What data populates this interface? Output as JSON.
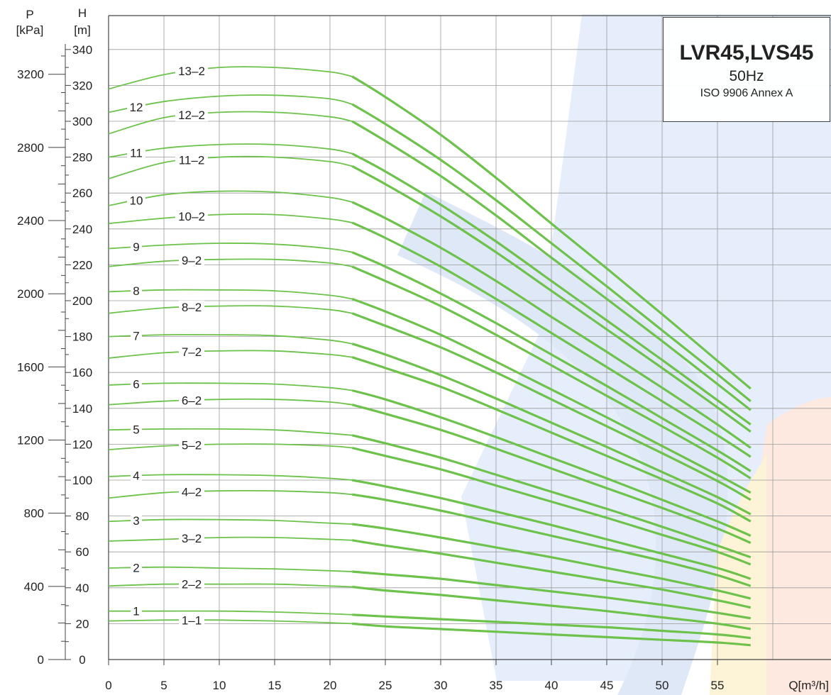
{
  "chart_data": {
    "type": "line",
    "title": "LVR45,LVS45",
    "subtitle": "50Hz",
    "standard": "ISO 9906 Annex A",
    "xlabel": "Q[m³/h]",
    "ylabel": "H",
    "ylabel_unit": "[m]",
    "y2label": "P",
    "y2label_unit": "[kPa]",
    "xlim": [
      0,
      65
    ],
    "ylim": [
      0,
      350
    ],
    "x_ticks": [
      0,
      5,
      10,
      15,
      20,
      25,
      30,
      35,
      40,
      45,
      50,
      55
    ],
    "y_ticks": [
      0,
      20,
      40,
      60,
      80,
      100,
      120,
      140,
      160,
      180,
      200,
      220,
      240,
      260,
      280,
      300,
      320,
      340
    ],
    "p_ticks": [
      0,
      400,
      800,
      1200,
      1600,
      2000,
      2400,
      2800,
      3200
    ],
    "grid": true,
    "line_color": "#6cc24a",
    "x": [
      0,
      5,
      10,
      15,
      20,
      22,
      25,
      30,
      35,
      40,
      45,
      50,
      55,
      58
    ],
    "series": [
      {
        "name": "1-1",
        "label_x": 7.5,
        "values": [
          21.5,
          22,
          22,
          21.5,
          20.5,
          20,
          18.5,
          17,
          15.5,
          14,
          12.5,
          11,
          9.5,
          8
        ]
      },
      {
        "name": "1",
        "label_x": 2.5,
        "values": [
          27,
          27,
          27,
          26.5,
          25.5,
          25,
          24,
          22.5,
          21,
          19.5,
          18,
          16,
          14,
          12
        ]
      },
      {
        "name": "2-2",
        "label_x": 7.5,
        "values": [
          41,
          42,
          42,
          42,
          41,
          40.5,
          38.5,
          36,
          33,
          30,
          27,
          23.5,
          20,
          17
        ]
      },
      {
        "name": "2",
        "label_x": 2.5,
        "values": [
          51,
          51.5,
          51,
          50.5,
          49.5,
          49,
          47.5,
          45,
          41.5,
          38,
          34.5,
          30.5,
          26,
          23
        ]
      },
      {
        "name": "3-2",
        "label_x": 7.5,
        "values": [
          66,
          67,
          68,
          68,
          67,
          66.5,
          63.5,
          59,
          54,
          49,
          44,
          39,
          33,
          29
        ]
      },
      {
        "name": "3",
        "label_x": 2.5,
        "values": [
          77,
          78,
          78,
          77.5,
          76,
          75.5,
          73,
          68,
          62.5,
          57,
          51,
          45,
          38.5,
          34
        ]
      },
      {
        "name": "4-2",
        "label_x": 7.5,
        "values": [
          90,
          93,
          94,
          94,
          93,
          92,
          89,
          83,
          76,
          69,
          62,
          55,
          47,
          41
        ]
      },
      {
        "name": "4",
        "label_x": 2.5,
        "values": [
          102,
          103,
          103,
          102.5,
          101,
          100,
          96.5,
          90,
          82.5,
          75,
          67,
          59,
          51,
          45
        ]
      },
      {
        "name": "5-2",
        "label_x": 7.5,
        "values": [
          117,
          119,
          120,
          120,
          119,
          118,
          113.5,
          106,
          97,
          88,
          79,
          69.5,
          60,
          53
        ]
      },
      {
        "name": "5",
        "label_x": 2.5,
        "values": [
          128,
          128.5,
          128.5,
          128,
          126,
          125,
          120.5,
          112.5,
          103,
          93.5,
          84,
          74,
          63.5,
          57
        ]
      },
      {
        "name": "6-2",
        "label_x": 7.5,
        "values": [
          142,
          144,
          145,
          145,
          143.5,
          142,
          137,
          128,
          117.5,
          106.5,
          95.5,
          84.5,
          73,
          65
        ]
      },
      {
        "name": "6",
        "label_x": 2.5,
        "values": [
          153,
          154,
          154,
          153.5,
          151.5,
          150,
          145,
          135,
          124,
          112.5,
          101,
          89,
          77,
          69
        ]
      },
      {
        "name": "7-2",
        "label_x": 7.5,
        "values": [
          168,
          171,
          172,
          172,
          170,
          168.5,
          162.5,
          152,
          139.5,
          126.5,
          113.5,
          100.5,
          87,
          77
        ]
      },
      {
        "name": "7",
        "label_x": 2.5,
        "values": [
          180,
          181,
          181,
          180.5,
          178,
          176,
          170,
          158.5,
          145.5,
          132,
          118.5,
          104.5,
          90.5,
          81
        ]
      },
      {
        "name": "8-2",
        "label_x": 7.5,
        "values": [
          193,
          196,
          197,
          197,
          195,
          193,
          186,
          174,
          160,
          145,
          130,
          115,
          99.5,
          89
        ]
      },
      {
        "name": "8",
        "label_x": 2.5,
        "values": [
          205,
          206,
          206,
          205.5,
          203,
          201,
          194,
          181,
          166,
          150.5,
          135,
          119,
          103,
          93
        ]
      },
      {
        "name": "9-2",
        "label_x": 7.5,
        "values": [
          219,
          222,
          223,
          223,
          221,
          219,
          211,
          197,
          181,
          164,
          147,
          130,
          112.5,
          101
        ]
      },
      {
        "name": "9",
        "label_x": 2.5,
        "values": [
          229,
          231,
          232,
          231.5,
          229,
          227,
          219,
          204,
          187.5,
          170,
          152.5,
          134.5,
          116.5,
          105
        ]
      },
      {
        "name": "10-2",
        "label_x": 7.5,
        "values": [
          243,
          246,
          248,
          248,
          245.5,
          243.5,
          235,
          219,
          201,
          182,
          163,
          144,
          125,
          113
        ]
      },
      {
        "name": "10",
        "label_x": 2.5,
        "values": [
          253,
          259,
          261,
          260.5,
          257.5,
          255,
          246,
          229.5,
          211,
          191,
          171.5,
          151.5,
          131,
          118
        ]
      },
      {
        "name": "11-2",
        "label_x": 7.5,
        "values": [
          268,
          277,
          280,
          280,
          277.5,
          275,
          265,
          247,
          227,
          205.5,
          184,
          162.5,
          140.5,
          127
        ]
      },
      {
        "name": "11",
        "label_x": 2.5,
        "values": [
          280,
          285,
          287,
          287,
          284.5,
          282,
          272,
          253.5,
          233,
          211,
          189,
          167,
          144.5,
          131
        ]
      },
      {
        "name": "12-2",
        "label_x": 7.5,
        "values": [
          293,
          302,
          305,
          305,
          302.5,
          300,
          289,
          269.5,
          247.5,
          224,
          201,
          177.5,
          153.5,
          139
        ]
      },
      {
        "name": "12",
        "label_x": 2.5,
        "values": [
          305,
          311,
          314,
          314.5,
          312.5,
          309.5,
          298.5,
          278.5,
          256,
          232,
          208,
          183.5,
          159,
          144
        ]
      },
      {
        "name": "13-2",
        "label_x": 7.5,
        "values": [
          318,
          326,
          330,
          330,
          327.5,
          325,
          313.5,
          292.5,
          268.5,
          243,
          218,
          192.5,
          166.5,
          151
        ]
      }
    ]
  }
}
